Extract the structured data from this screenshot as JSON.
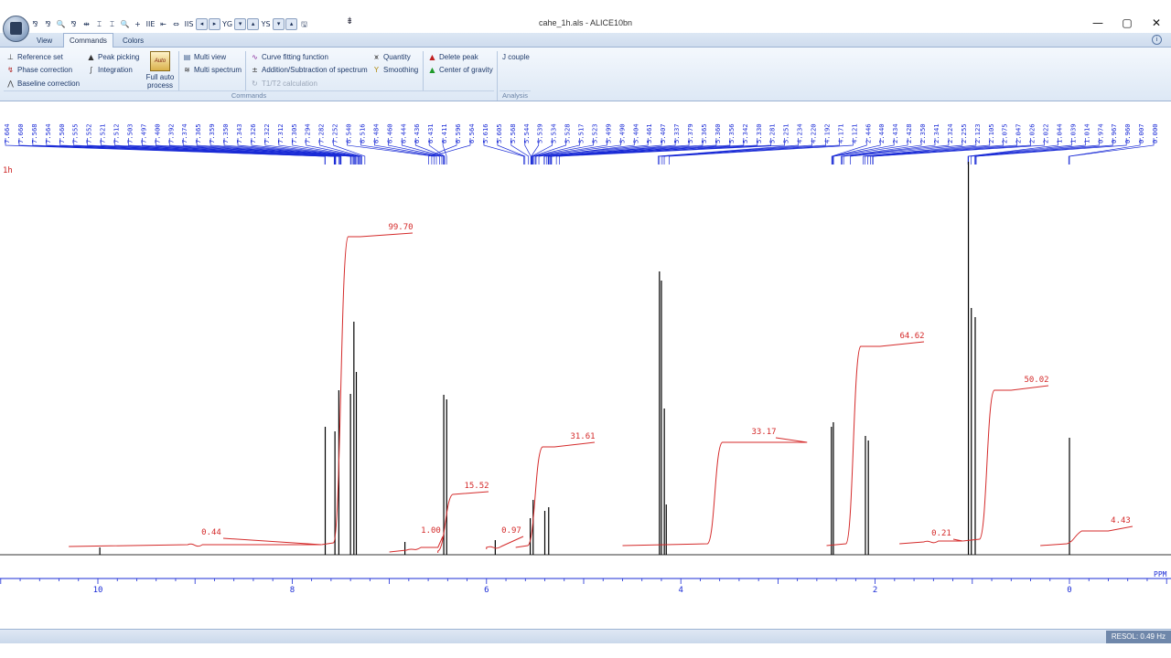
{
  "window": {
    "title": "cahe_1h.als - ALICE10bn",
    "min_glyph": "—",
    "max_glyph": "▢",
    "close_glyph": "✕"
  },
  "quick_access": [
    "⅋",
    "⅋",
    "🔍",
    "⅋",
    "⇹",
    "⌶",
    "⌶",
    "🔍",
    "+",
    "IIE",
    "⇤",
    "⇔",
    "IIS",
    "◂",
    "▸",
    "YG",
    "▾",
    "▴",
    "YS",
    "▾",
    "▴",
    "🖫"
  ],
  "qat_more": "⇟",
  "tabs": [
    "View",
    "Commands",
    "Colors"
  ],
  "active_tab": "Commands",
  "help_glyph": "i",
  "ribbon": {
    "items": {
      "reference_set": "Reference set",
      "phase_correction": "Phase correction",
      "baseline_correction": "Baseline correction",
      "peak_picking": "Peak picking",
      "integration": "Integration",
      "full_auto_process": "Full auto process",
      "full_auto_icon_text": "Auto",
      "multi_view": "Multi view",
      "multi_spectrum": "Multi spectrum",
      "curve_fitting": "Curve fitting function",
      "add_sub": "Addition/Subtraction of spectrum",
      "t1t2": "T1/T2 calculation",
      "quantity": "Quantity",
      "smoothing": "Smoothing",
      "delete_peak": "Delete peak",
      "center_of_gravity": "Center of gravity",
      "j_couple": "J couple"
    },
    "groups": [
      "Commands",
      "Analysis"
    ]
  },
  "spectrum": {
    "label": "1h",
    "axis_unit": "PPM",
    "x_ticks": [
      "10",
      "8",
      "6",
      "4",
      "2",
      "0"
    ],
    "peak_labels_top": [
      "7.664",
      "7.660",
      "7.568",
      "7.564",
      "7.560",
      "7.555",
      "7.552",
      "7.521",
      "7.512",
      "7.503",
      "7.497",
      "7.400",
      "7.392",
      "7.374",
      "7.365",
      "7.359",
      "7.350",
      "7.343",
      "7.326",
      "7.322",
      "7.312",
      "7.305",
      "7.294",
      "7.282",
      "7.252",
      "6.540",
      "6.516",
      "6.484",
      "6.460",
      "6.444",
      "6.436",
      "6.431",
      "6.411",
      "6.596",
      "6.564",
      "5.616",
      "5.605",
      "5.568",
      "5.544",
      "5.539",
      "5.534",
      "5.528",
      "5.517",
      "5.523",
      "5.499",
      "5.490",
      "5.404",
      "5.461",
      "5.407",
      "5.337",
      "5.379",
      "5.365",
      "5.360",
      "5.356",
      "5.342",
      "5.330",
      "5.281",
      "5.251",
      "4.234",
      "4.220",
      "4.192",
      "4.171",
      "4.121",
      "2.446",
      "2.440",
      "2.434",
      "2.428",
      "2.350",
      "2.341",
      "2.324",
      "2.255",
      "2.123",
      "2.105",
      "2.075",
      "2.047",
      "2.026",
      "2.022",
      "1.044",
      "1.039",
      "1.014",
      "0.974",
      "0.967",
      "0.960",
      "0.007",
      "0.000"
    ],
    "integrals": [
      {
        "label": "0.44",
        "value": 0.44
      },
      {
        "label": "99.70",
        "value": 99.7
      },
      {
        "label": "1.00",
        "value": 1.0
      },
      {
        "label": "15.52",
        "value": 15.52
      },
      {
        "label": "0.97",
        "value": 0.97
      },
      {
        "label": "31.61",
        "value": 31.61
      },
      {
        "label": "33.17",
        "value": 33.17
      },
      {
        "label": "64.62",
        "value": 64.62
      },
      {
        "label": "0.21",
        "value": 0.21
      },
      {
        "label": "50.02",
        "value": 50.02
      },
      {
        "label": "4.43",
        "value": 4.43
      }
    ]
  },
  "status": {
    "resolution": "RESOL: 0.49 Hz"
  },
  "colors": {
    "peak_labels": "#1a2bd6",
    "integral": "#d42a2a",
    "spectrum": "#000000",
    "axis": "#1a2bd6",
    "ribbon_text": "#1f3a6a"
  }
}
